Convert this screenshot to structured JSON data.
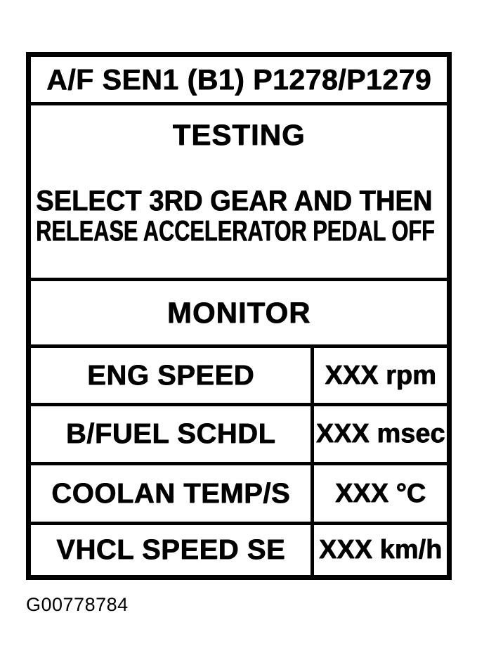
{
  "display": {
    "title": "A/F SEN1 (B1) P1278/P1279",
    "status_heading": "TESTING",
    "instructions": [
      "SELECT 3RD GEAR AND THEN",
      "RELEASE ACCELERATOR PEDAL OFF"
    ],
    "monitor_heading": "MONITOR",
    "monitor_rows": [
      {
        "label": "ENG SPEED",
        "value": "XXX rpm"
      },
      {
        "label": "B/FUEL SCHDL",
        "value": "XXX msec"
      },
      {
        "label": "COOLAN TEMP/S",
        "value": "XXX °C"
      },
      {
        "label": "VHCL SPEED SE",
        "value": "XXX km/h"
      }
    ]
  },
  "figure": {
    "id": "G00778784"
  },
  "colors": {
    "ink": "#000000",
    "paper": "#ffffff"
  }
}
